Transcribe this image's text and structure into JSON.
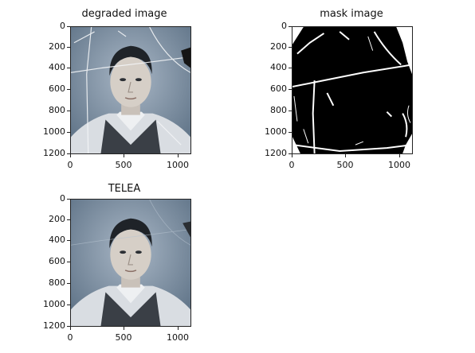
{
  "figure": {
    "panels": [
      {
        "id": "degraded",
        "title": "degraded image",
        "content": "photo",
        "y_ticks": [
          "0",
          "200",
          "400",
          "600",
          "800",
          "1000",
          "1200"
        ],
        "x_ticks": [
          "0",
          "500",
          "1000"
        ]
      },
      {
        "id": "mask",
        "title": "mask image",
        "content": "mask",
        "y_ticks": [
          "0",
          "200",
          "400",
          "600",
          "800",
          "1000",
          "1200"
        ],
        "x_ticks": [
          "0",
          "500",
          "1000"
        ]
      },
      {
        "id": "telea",
        "title": "TELEA",
        "content": "photo-restored",
        "y_ticks": [
          "0",
          "200",
          "400",
          "600",
          "800",
          "1000",
          "1200"
        ],
        "x_ticks": [
          "0",
          "500",
          "1000"
        ]
      }
    ]
  },
  "colors": {
    "axis": "#222222",
    "photo_background": "#7a8da0",
    "mask_black": "#000000",
    "mask_white": "#ffffff"
  }
}
